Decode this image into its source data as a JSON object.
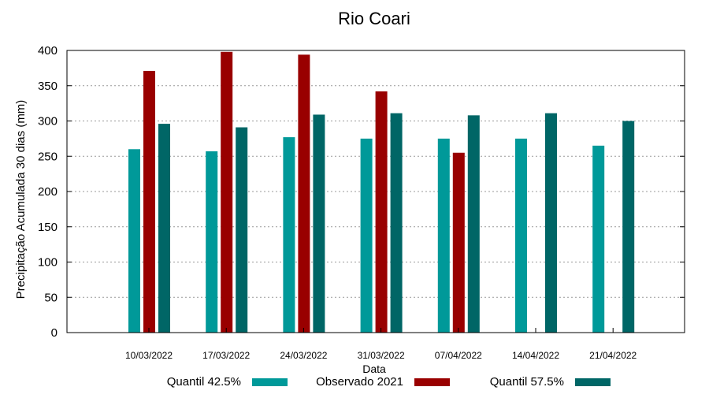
{
  "chart_data": {
    "type": "bar",
    "title": "Rio Coari",
    "xlabel": "Data",
    "ylabel": "Precipitação Acumulada 30 dias (mm)",
    "ylim": [
      0,
      400
    ],
    "yticks": [
      0,
      50,
      100,
      150,
      200,
      250,
      300,
      350,
      400
    ],
    "grid": true,
    "legend_position": "bottom",
    "categories": [
      "10/03/2022",
      "17/03/2022",
      "24/03/2022",
      "31/03/2022",
      "07/04/2022",
      "14/04/2022",
      "21/04/2022"
    ],
    "series": [
      {
        "name": "Quantil 42.5%",
        "color": "#009999",
        "values": [
          260,
          257,
          277,
          275,
          275,
          275,
          265
        ]
      },
      {
        "name": "Observado 2021",
        "color": "#990000",
        "values": [
          371,
          398,
          394,
          342,
          255,
          null,
          null
        ]
      },
      {
        "name": "Quantil 57.5%",
        "color": "#006666",
        "values": [
          296,
          291,
          309,
          311,
          308,
          311,
          300
        ]
      }
    ]
  }
}
